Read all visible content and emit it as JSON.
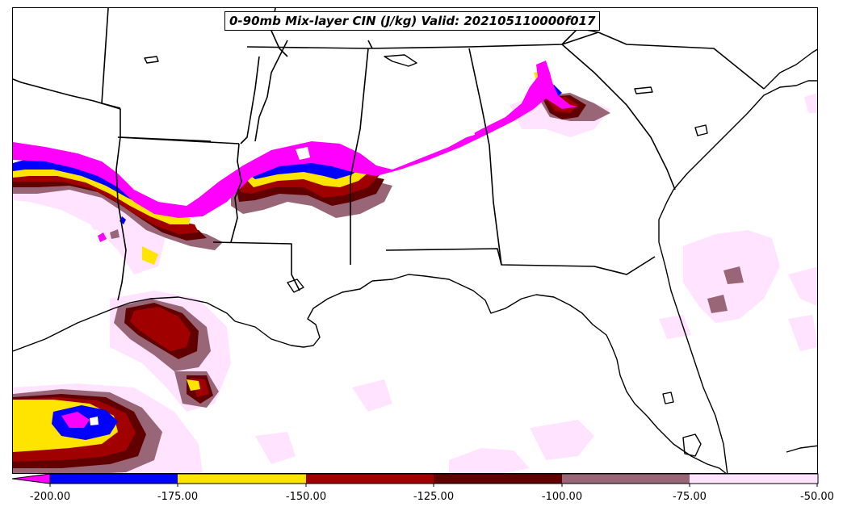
{
  "map": {
    "title": "0-90mb Mix-layer CIN (J/kg) Valid: 202105110000f017",
    "field": "0-90mb Mix-layer CIN",
    "units": "J/kg",
    "valid": "202105110000f017",
    "region": "Southeastern United States and Gulf of Mexico"
  },
  "colorbar": {
    "extend": "min",
    "levels": [
      {
        "from": -200,
        "to": -175,
        "color": "#0000ff"
      },
      {
        "from": -175,
        "to": -150,
        "color": "#ffe400"
      },
      {
        "from": -150,
        "to": -125,
        "color": "#a00000"
      },
      {
        "from": -125,
        "to": -100,
        "color": "#600000"
      },
      {
        "from": -100,
        "to": -75,
        "color": "#996677"
      },
      {
        "from": -75,
        "to": -50,
        "color": "#ffe3ff"
      }
    ],
    "below_min_color": "#ff00ff",
    "tick_labels": [
      "-200.00",
      "-175.00",
      "-150.00",
      "-125.00",
      "-100.00",
      "-75.00",
      "-50.00"
    ]
  },
  "colors": {
    "magenta": "#ff00ff",
    "blue": "#0000ff",
    "yellow": "#ffe400",
    "red": "#a00000",
    "darkred": "#600000",
    "mauve": "#996677",
    "pink": "#ffe3ff",
    "boundary": "#000000"
  }
}
